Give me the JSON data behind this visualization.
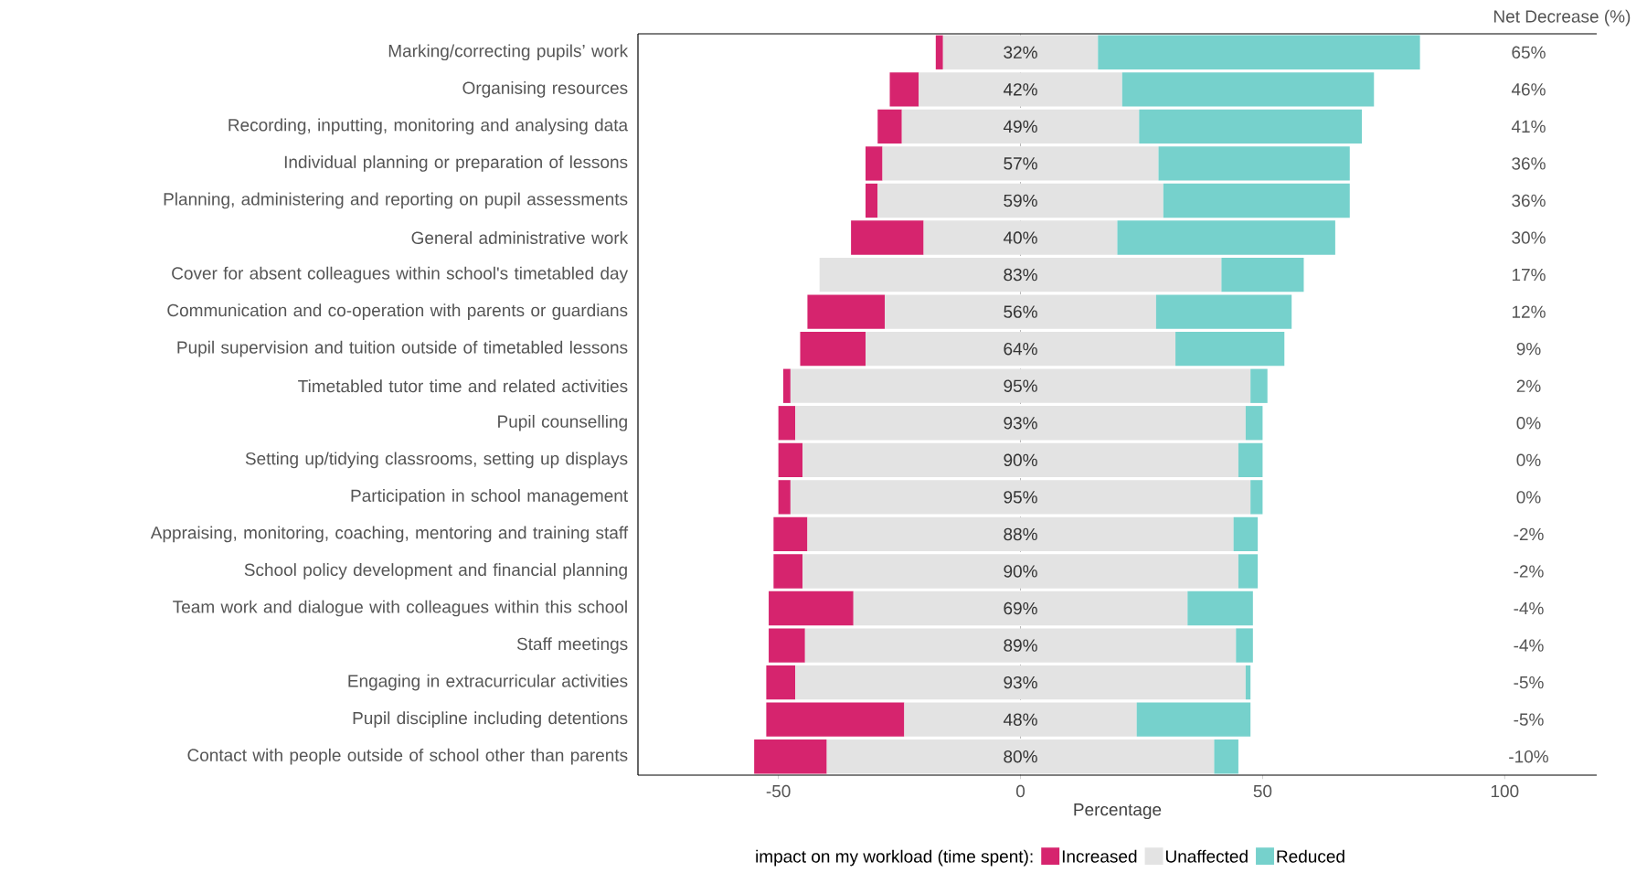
{
  "chart_data": {
    "type": "bar",
    "orientation": "horizontal",
    "stacked": true,
    "categories": [
      "Marking/correcting pupils’ work",
      "Organising resources",
      "Recording, inputting, monitoring and analysing data",
      "Individual planning or preparation of lessons",
      "Planning, administering and reporting on pupil assessments",
      "General administrative work",
      "Cover for absent colleagues within school's timetabled day",
      "Communication and co-operation with parents or guardians",
      "Pupil supervision and tuition outside of timetabled lessons",
      "Timetabled tutor time and related activities",
      "Pupil counselling",
      "Setting up/tidying classrooms, setting up displays",
      "Participation in school management",
      "Appraising, monitoring, coaching, mentoring and training staff",
      "School policy development and financial planning",
      "Team work and dialogue with colleagues within this school",
      "Staff meetings",
      "Engaging in extracurricular activities",
      "Pupil discipline including detentions",
      "Contact with people outside of school other than parents"
    ],
    "series": [
      {
        "name": "Increased",
        "color": "#d6246e",
        "values": [
          1.5,
          6,
          5,
          3.5,
          2.5,
          15,
          null,
          16,
          13.5,
          1.5,
          3.5,
          5,
          2.5,
          7,
          6,
          17.5,
          7.5,
          6,
          28.5,
          15
        ],
        "base": [
          -17.5,
          -27,
          -29.5,
          -32,
          -32,
          -35,
          null,
          -44,
          -45.5,
          -49,
          -50,
          -50,
          -50,
          -51,
          -51,
          -52,
          -52,
          -52.5,
          -52.5,
          -55
        ]
      },
      {
        "name": "Unaffected",
        "color": "#e3e3e3",
        "values": [
          32,
          42,
          49,
          57,
          59,
          40,
          83,
          56,
          64,
          95,
          93,
          90,
          95,
          88,
          90,
          69,
          89,
          93,
          48,
          80
        ],
        "base": [
          -16,
          -21,
          -24.5,
          -28.5,
          -29.5,
          -20,
          -41.5,
          -28,
          -32,
          -47.5,
          -46.5,
          -45,
          -47.5,
          -44,
          -45,
          -34.5,
          -44.5,
          -46.5,
          -24,
          -40
        ],
        "value_labels": [
          "32%",
          "42%",
          "49%",
          "57%",
          "59%",
          "40%",
          "83%",
          "56%",
          "64%",
          "95%",
          "93%",
          "90%",
          "95%",
          "88%",
          "90%",
          "69%",
          "89%",
          "93%",
          "48%",
          "80%"
        ]
      },
      {
        "name": "Reduced",
        "color": "#76d1cc",
        "values": [
          66.5,
          52,
          46,
          39.5,
          38.5,
          45,
          17,
          28,
          22.5,
          3.5,
          3.5,
          5,
          2.5,
          5,
          4,
          13.5,
          3.5,
          1,
          23.5,
          5
        ],
        "base": [
          16,
          21,
          24.5,
          28.5,
          29.5,
          20,
          41.5,
          28,
          32,
          47.5,
          46.5,
          45,
          47.5,
          44,
          45,
          34.5,
          44.5,
          46.5,
          24,
          40
        ]
      }
    ],
    "xlim": [
      -79,
      119
    ],
    "xticks": [
      -50,
      0,
      50,
      100
    ],
    "xlabel": "Percentage",
    "legend": "bottom",
    "legend_title": "impact on my workload (time spent):",
    "ref_lines": [
      {
        "axis": "x",
        "value": 0,
        "line_style": "dashed"
      }
    ],
    "annotations": [
      "Net Decrease (%)",
      "65%",
      "46%",
      "41%",
      "36%",
      "36%",
      "30%",
      "17%",
      "12%",
      "9%",
      "2%",
      "0%",
      "0%",
      "0%",
      "-2%",
      "-2%",
      "-4%",
      "-4%",
      "-5%",
      "-5%",
      "-10%"
    ]
  }
}
